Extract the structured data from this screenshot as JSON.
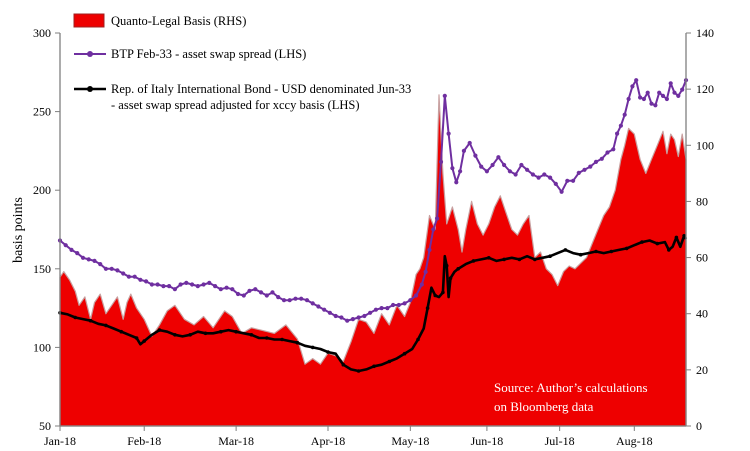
{
  "chart_data": {
    "type": "area",
    "x_ticks": [
      "Jan-18",
      "Feb-18",
      "Mar-18",
      "Apr-18",
      "May-18",
      "Jun-18",
      "Jul-18",
      "Aug-18"
    ],
    "ylabel": "basis points",
    "ylim_left": [
      50,
      300
    ],
    "yticks_left": [
      "50",
      "100",
      "150",
      "200",
      "250",
      "300"
    ],
    "ylim_right": [
      0,
      140
    ],
    "yticks_right": [
      "0",
      "20",
      "40",
      "60",
      "80",
      "100",
      "120",
      "140"
    ],
    "grid": false,
    "legend_position": "top-left",
    "annotation": [
      "Source: Author’s calculations",
      "on Bloomberg data"
    ],
    "series": [
      {
        "name": "Quanto-Legal Basis (RHS)",
        "type": "area",
        "axis": "right",
        "color": "#ee0000",
        "points": [
          [
            0,
            53
          ],
          [
            2,
            55
          ],
          [
            5,
            52
          ],
          [
            8,
            48
          ],
          [
            10,
            43
          ],
          [
            13,
            46
          ],
          [
            16,
            38
          ],
          [
            18,
            44
          ],
          [
            21,
            47
          ],
          [
            24,
            40
          ],
          [
            27,
            43
          ],
          [
            30,
            46
          ],
          [
            33,
            38
          ],
          [
            35,
            44
          ],
          [
            37,
            47
          ],
          [
            40,
            42
          ],
          [
            44,
            38
          ],
          [
            48,
            32
          ],
          [
            52,
            36
          ],
          [
            56,
            41
          ],
          [
            60,
            43
          ],
          [
            65,
            38
          ],
          [
            70,
            36
          ],
          [
            75,
            39
          ],
          [
            80,
            35
          ],
          [
            86,
            41
          ],
          [
            90,
            39
          ],
          [
            95,
            33
          ],
          [
            100,
            35
          ],
          [
            106,
            34
          ],
          [
            112,
            33
          ],
          [
            118,
            36
          ],
          [
            124,
            31
          ],
          [
            128,
            22
          ],
          [
            132,
            24
          ],
          [
            136,
            22
          ],
          [
            140,
            26
          ],
          [
            144,
            25
          ],
          [
            148,
            23
          ],
          [
            152,
            30
          ],
          [
            156,
            38
          ],
          [
            160,
            37
          ],
          [
            164,
            33
          ],
          [
            168,
            40
          ],
          [
            172,
            36
          ],
          [
            176,
            43
          ],
          [
            180,
            39
          ],
          [
            183,
            44
          ],
          [
            186,
            54
          ],
          [
            188,
            56
          ],
          [
            190,
            60
          ],
          [
            193,
            75
          ],
          [
            196,
            70
          ],
          [
            198,
            118
          ],
          [
            200,
            90
          ],
          [
            202,
            72
          ],
          [
            205,
            78
          ],
          [
            208,
            70
          ],
          [
            210,
            62
          ],
          [
            212,
            70
          ],
          [
            215,
            80
          ],
          [
            218,
            72
          ],
          [
            221,
            68
          ],
          [
            224,
            72
          ],
          [
            227,
            78
          ],
          [
            230,
            82
          ],
          [
            233,
            76
          ],
          [
            236,
            70
          ],
          [
            239,
            68
          ],
          [
            242,
            72
          ],
          [
            245,
            75
          ],
          [
            248,
            60
          ],
          [
            251,
            62
          ],
          [
            254,
            56
          ],
          [
            257,
            54
          ],
          [
            260,
            50
          ],
          [
            263,
            55
          ],
          [
            266,
            57
          ],
          [
            269,
            56
          ],
          [
            272,
            58
          ],
          [
            275,
            60
          ],
          [
            278,
            65
          ],
          [
            281,
            70
          ],
          [
            284,
            75
          ],
          [
            287,
            78
          ],
          [
            290,
            84
          ],
          [
            293,
            95
          ],
          [
            295,
            100
          ],
          [
            297,
            106
          ],
          [
            300,
            104
          ],
          [
            303,
            95
          ],
          [
            306,
            90
          ],
          [
            309,
            95
          ],
          [
            312,
            100
          ],
          [
            315,
            105
          ],
          [
            317,
            97
          ],
          [
            319,
            104
          ],
          [
            321,
            102
          ],
          [
            323,
            96
          ],
          [
            325,
            104
          ],
          [
            327,
            95
          ]
        ]
      },
      {
        "name": "BTP Feb-33 - asset swap spread (LHS)",
        "type": "line",
        "axis": "left",
        "color": "#6f2fa0",
        "points": [
          [
            0,
            168
          ],
          [
            3,
            165
          ],
          [
            6,
            162
          ],
          [
            9,
            160
          ],
          [
            12,
            157
          ],
          [
            15,
            156
          ],
          [
            18,
            155
          ],
          [
            21,
            153
          ],
          [
            24,
            150
          ],
          [
            27,
            150
          ],
          [
            30,
            149
          ],
          [
            33,
            147
          ],
          [
            36,
            145
          ],
          [
            39,
            145
          ],
          [
            42,
            143
          ],
          [
            45,
            142
          ],
          [
            48,
            140
          ],
          [
            51,
            140
          ],
          [
            54,
            139
          ],
          [
            57,
            139
          ],
          [
            60,
            137
          ],
          [
            63,
            140
          ],
          [
            66,
            141
          ],
          [
            69,
            140
          ],
          [
            72,
            139
          ],
          [
            75,
            140
          ],
          [
            78,
            141
          ],
          [
            81,
            139
          ],
          [
            84,
            137
          ],
          [
            87,
            138
          ],
          [
            90,
            137
          ],
          [
            93,
            134
          ],
          [
            96,
            133
          ],
          [
            99,
            136
          ],
          [
            102,
            137
          ],
          [
            105,
            135
          ],
          [
            108,
            133
          ],
          [
            111,
            135
          ],
          [
            114,
            132
          ],
          [
            117,
            130
          ],
          [
            120,
            130
          ],
          [
            123,
            131
          ],
          [
            126,
            131
          ],
          [
            129,
            130
          ],
          [
            132,
            128
          ],
          [
            135,
            126
          ],
          [
            138,
            124
          ],
          [
            141,
            122
          ],
          [
            144,
            120
          ],
          [
            147,
            119
          ],
          [
            150,
            117
          ],
          [
            153,
            118
          ],
          [
            156,
            119
          ],
          [
            159,
            120
          ],
          [
            162,
            122
          ],
          [
            165,
            124
          ],
          [
            168,
            125
          ],
          [
            171,
            125
          ],
          [
            174,
            127
          ],
          [
            177,
            127
          ],
          [
            180,
            128
          ],
          [
            183,
            130
          ],
          [
            186,
            133
          ],
          [
            189,
            140
          ],
          [
            191,
            148
          ],
          [
            193,
            162
          ],
          [
            195,
            175
          ],
          [
            197,
            182
          ],
          [
            199,
            218
          ],
          [
            201,
            260
          ],
          [
            203,
            236
          ],
          [
            205,
            214
          ],
          [
            207,
            205
          ],
          [
            209,
            212
          ],
          [
            211,
            225
          ],
          [
            214,
            230
          ],
          [
            217,
            222
          ],
          [
            220,
            215
          ],
          [
            223,
            212
          ],
          [
            226,
            216
          ],
          [
            229,
            221
          ],
          [
            232,
            216
          ],
          [
            235,
            212
          ],
          [
            238,
            210
          ],
          [
            241,
            216
          ],
          [
            244,
            213
          ],
          [
            247,
            210
          ],
          [
            250,
            208
          ],
          [
            253,
            210
          ],
          [
            256,
            208
          ],
          [
            259,
            204
          ],
          [
            262,
            199
          ],
          [
            265,
            206
          ],
          [
            268,
            206
          ],
          [
            271,
            211
          ],
          [
            274,
            213
          ],
          [
            277,
            215
          ],
          [
            280,
            218
          ],
          [
            283,
            220
          ],
          [
            286,
            224
          ],
          [
            289,
            226
          ],
          [
            291,
            236
          ],
          [
            293,
            241
          ],
          [
            295,
            248
          ],
          [
            297,
            258
          ],
          [
            299,
            266
          ],
          [
            301,
            270
          ],
          [
            303,
            259
          ],
          [
            305,
            258
          ],
          [
            307,
            262
          ],
          [
            309,
            255
          ],
          [
            311,
            254
          ],
          [
            313,
            262
          ],
          [
            315,
            260
          ],
          [
            317,
            258
          ],
          [
            319,
            268
          ],
          [
            321,
            262
          ],
          [
            323,
            260
          ],
          [
            325,
            264
          ],
          [
            327,
            270
          ]
        ]
      },
      {
        "name": "Rep. of Italy International Bond - USD denominated Jun-33 - asset swap spread adjusted for xccy basis (LHS)",
        "type": "line",
        "axis": "left",
        "color": "#000000",
        "points": [
          [
            0,
            122
          ],
          [
            4,
            121
          ],
          [
            8,
            119
          ],
          [
            12,
            118
          ],
          [
            16,
            117
          ],
          [
            20,
            115
          ],
          [
            24,
            114
          ],
          [
            28,
            112
          ],
          [
            32,
            110
          ],
          [
            36,
            108
          ],
          [
            40,
            106
          ],
          [
            42,
            102
          ],
          [
            44,
            104
          ],
          [
            48,
            108
          ],
          [
            52,
            111
          ],
          [
            56,
            110
          ],
          [
            60,
            108
          ],
          [
            64,
            107
          ],
          [
            68,
            108
          ],
          [
            72,
            110
          ],
          [
            76,
            109
          ],
          [
            80,
            109
          ],
          [
            84,
            110
          ],
          [
            88,
            111
          ],
          [
            92,
            110
          ],
          [
            96,
            109
          ],
          [
            100,
            108
          ],
          [
            104,
            106
          ],
          [
            108,
            106
          ],
          [
            112,
            105
          ],
          [
            116,
            105
          ],
          [
            120,
            104
          ],
          [
            124,
            103
          ],
          [
            128,
            101
          ],
          [
            132,
            100
          ],
          [
            136,
            99
          ],
          [
            140,
            97
          ],
          [
            144,
            96
          ],
          [
            148,
            89
          ],
          [
            152,
            86
          ],
          [
            156,
            85
          ],
          [
            160,
            86
          ],
          [
            164,
            88
          ],
          [
            168,
            89
          ],
          [
            172,
            91
          ],
          [
            176,
            93
          ],
          [
            180,
            96
          ],
          [
            184,
            99
          ],
          [
            187,
            105
          ],
          [
            190,
            112
          ],
          [
            192,
            125
          ],
          [
            194,
            138
          ],
          [
            196,
            133
          ],
          [
            198,
            132
          ],
          [
            200,
            135
          ],
          [
            201,
            158
          ],
          [
            202,
            152
          ],
          [
            203,
            132
          ],
          [
            204,
            144
          ],
          [
            206,
            148
          ],
          [
            208,
            150
          ],
          [
            212,
            153
          ],
          [
            216,
            155
          ],
          [
            220,
            156
          ],
          [
            224,
            157
          ],
          [
            228,
            155
          ],
          [
            232,
            156
          ],
          [
            236,
            157
          ],
          [
            240,
            156
          ],
          [
            244,
            158
          ],
          [
            248,
            156
          ],
          [
            252,
            157
          ],
          [
            256,
            158
          ],
          [
            260,
            160
          ],
          [
            264,
            162
          ],
          [
            268,
            160
          ],
          [
            272,
            159
          ],
          [
            276,
            160
          ],
          [
            280,
            161
          ],
          [
            284,
            160
          ],
          [
            288,
            161
          ],
          [
            292,
            162
          ],
          [
            296,
            163
          ],
          [
            300,
            165
          ],
          [
            304,
            167
          ],
          [
            308,
            168
          ],
          [
            312,
            166
          ],
          [
            316,
            167
          ],
          [
            318,
            162
          ],
          [
            320,
            164
          ],
          [
            322,
            170
          ],
          [
            324,
            164
          ],
          [
            326,
            171
          ],
          [
            327,
            169
          ]
        ]
      }
    ]
  }
}
